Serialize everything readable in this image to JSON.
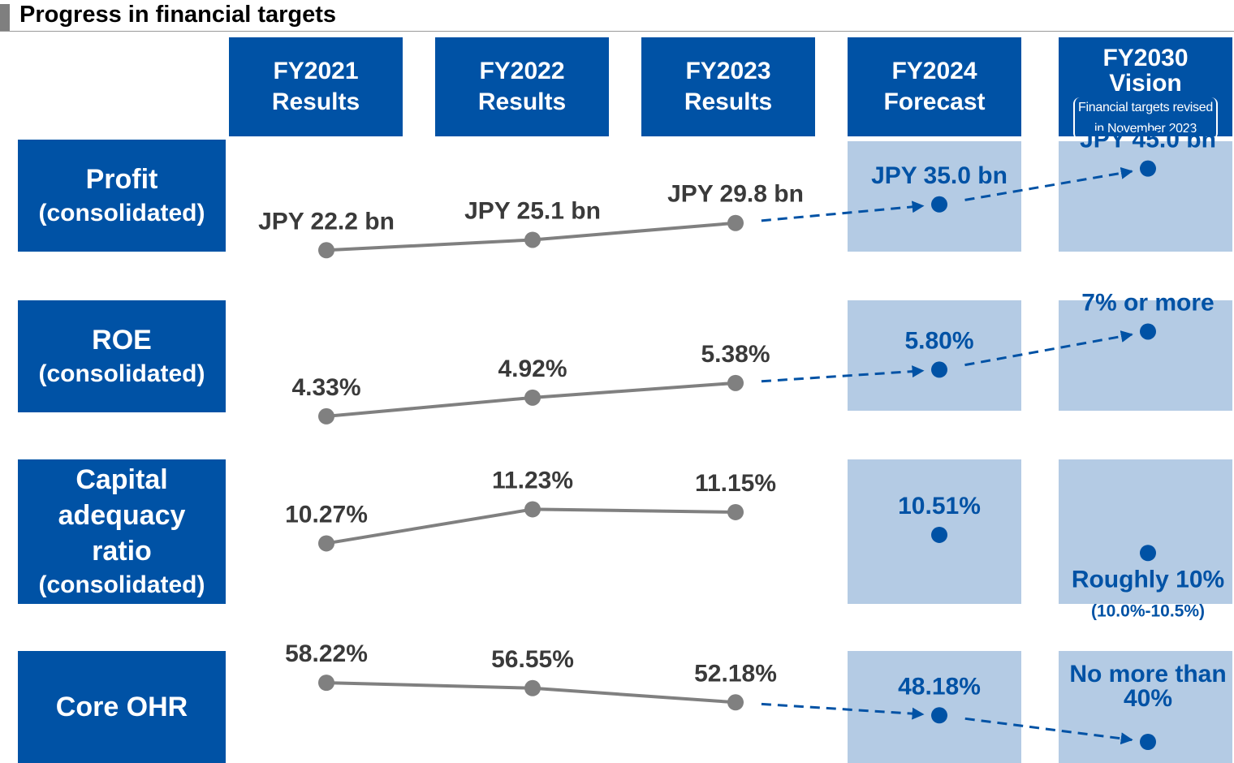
{
  "page": {
    "title": "Progress in financial targets"
  },
  "columns": [
    {
      "line1": "FY2021",
      "line2": "Results"
    },
    {
      "line1": "FY2022",
      "line2": "Results"
    },
    {
      "line1": "FY2023",
      "line2": "Results"
    },
    {
      "line1": "FY2024",
      "line2": "Forecast"
    },
    {
      "line1": "FY2030",
      "line2": "Vision",
      "note1": "Financial targets revised",
      "note2": "in November 2023"
    }
  ],
  "rows": [
    {
      "main": "Profit",
      "sub": "(consolidated)"
    },
    {
      "main": "ROE",
      "sub": "(consolidated)"
    },
    {
      "main": "Capital\nadequacy\nratio",
      "sub": "(consolidated)"
    },
    {
      "main": "Core OHR",
      "sub": ""
    }
  ],
  "colors": {
    "header_blue": "#0052a5",
    "target_bg": "#b4cbe4",
    "results_gray": "#808080",
    "results_text": "#3a3a3a",
    "target_blue": "#0052a5"
  },
  "chart_data": [
    {
      "type": "line",
      "metric": "Profit (consolidated)",
      "categories": [
        "FY2021 Results",
        "FY2022 Results",
        "FY2023 Results",
        "FY2024 Forecast",
        "FY2030 Vision"
      ],
      "values": [
        22.2,
        25.1,
        29.8,
        35.0,
        45.0
      ],
      "labels": [
        "JPY 22.2 bn",
        "JPY 25.1 bn",
        "JPY 29.8 bn",
        "JPY 35.0 bn",
        "JPY 45.0 bn"
      ],
      "sublabel_vision": "",
      "target_connector": "dashed"
    },
    {
      "type": "line",
      "metric": "ROE (consolidated)",
      "categories": [
        "FY2021 Results",
        "FY2022 Results",
        "FY2023 Results",
        "FY2024 Forecast",
        "FY2030 Vision"
      ],
      "values": [
        4.33,
        4.92,
        5.38,
        5.8,
        7.0
      ],
      "labels": [
        "4.33%",
        "4.92%",
        "5.38%",
        "5.80%",
        "7% or more"
      ],
      "sublabel_vision": "",
      "target_connector": "dashed"
    },
    {
      "type": "line",
      "metric": "Capital adequacy ratio (consolidated)",
      "categories": [
        "FY2021 Results",
        "FY2022 Results",
        "FY2023 Results",
        "FY2024 Forecast",
        "FY2030 Vision"
      ],
      "values": [
        10.27,
        11.23,
        11.15,
        10.51,
        10.0
      ],
      "labels": [
        "10.27%",
        "11.23%",
        "11.15%",
        "10.51%",
        "Roughly 10%"
      ],
      "sublabel_vision": "(10.0%-10.5%)",
      "target_connector": "none"
    },
    {
      "type": "line",
      "metric": "Core OHR",
      "categories": [
        "FY2021 Results",
        "FY2022 Results",
        "FY2023 Results",
        "FY2024 Forecast",
        "FY2030 Vision"
      ],
      "values": [
        58.22,
        56.55,
        52.18,
        48.18,
        40.0
      ],
      "labels": [
        "58.22%",
        "56.55%",
        "52.18%",
        "48.18%",
        "No more than\n40%"
      ],
      "sublabel_vision": "",
      "target_connector": "dashed"
    }
  ]
}
